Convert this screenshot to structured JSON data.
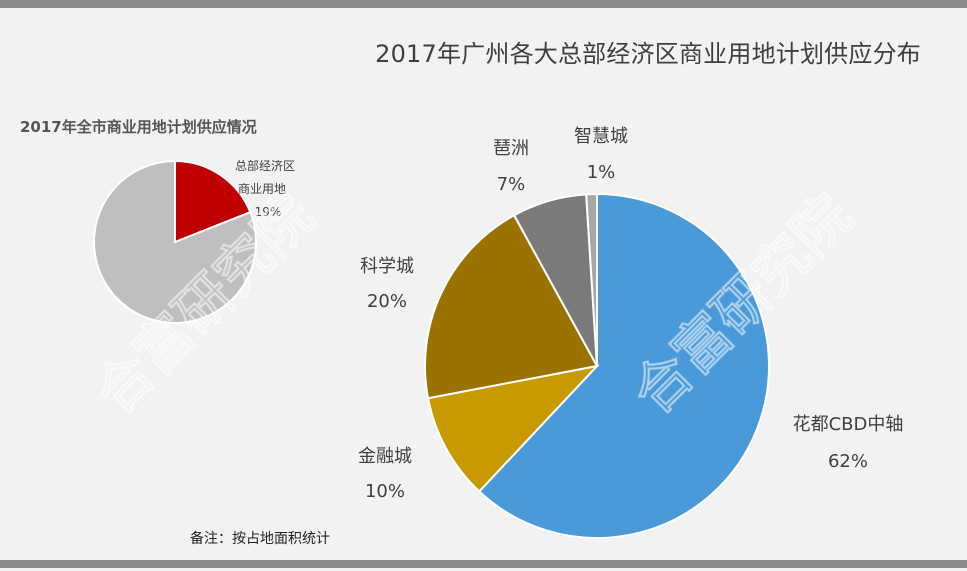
{
  "title": "2017年广州各大总部经济区商业用地计划供应分布",
  "note": "备注：按占地面积统计",
  "watermark": "合富研究院",
  "colors": {
    "frame": "#8c8c8c",
    "background": "#f2f2f2"
  },
  "chart_data": [
    {
      "type": "pie",
      "title": "2017年全市商业用地计划供应情况",
      "slices": [
        {
          "label": "总部经济区商业用地",
          "label_lines": [
            "总部经济区",
            "商业用地"
          ],
          "value_label": "19%",
          "value": 19,
          "color": "#c00000"
        },
        {
          "label": "",
          "value": 81,
          "color": "#bfbfbf"
        }
      ]
    },
    {
      "type": "pie",
      "title": "2017年广州各大总部经济区商业用地计划供应分布",
      "slices": [
        {
          "label": "花都CBD中轴",
          "value_label": "62%",
          "value": 62,
          "color": "#4a9ad9"
        },
        {
          "label": "金融城",
          "value_label": "10%",
          "value": 10,
          "color": "#c99a00"
        },
        {
          "label": "科学城",
          "value_label": "20%",
          "value": 20,
          "color": "#9a7200"
        },
        {
          "label": "琶洲",
          "value_label": "7%",
          "value": 7,
          "color": "#7a7a7a"
        },
        {
          "label": "智慧城",
          "value_label": "1%",
          "value": 1,
          "color": "#a6a6a6"
        }
      ]
    }
  ]
}
